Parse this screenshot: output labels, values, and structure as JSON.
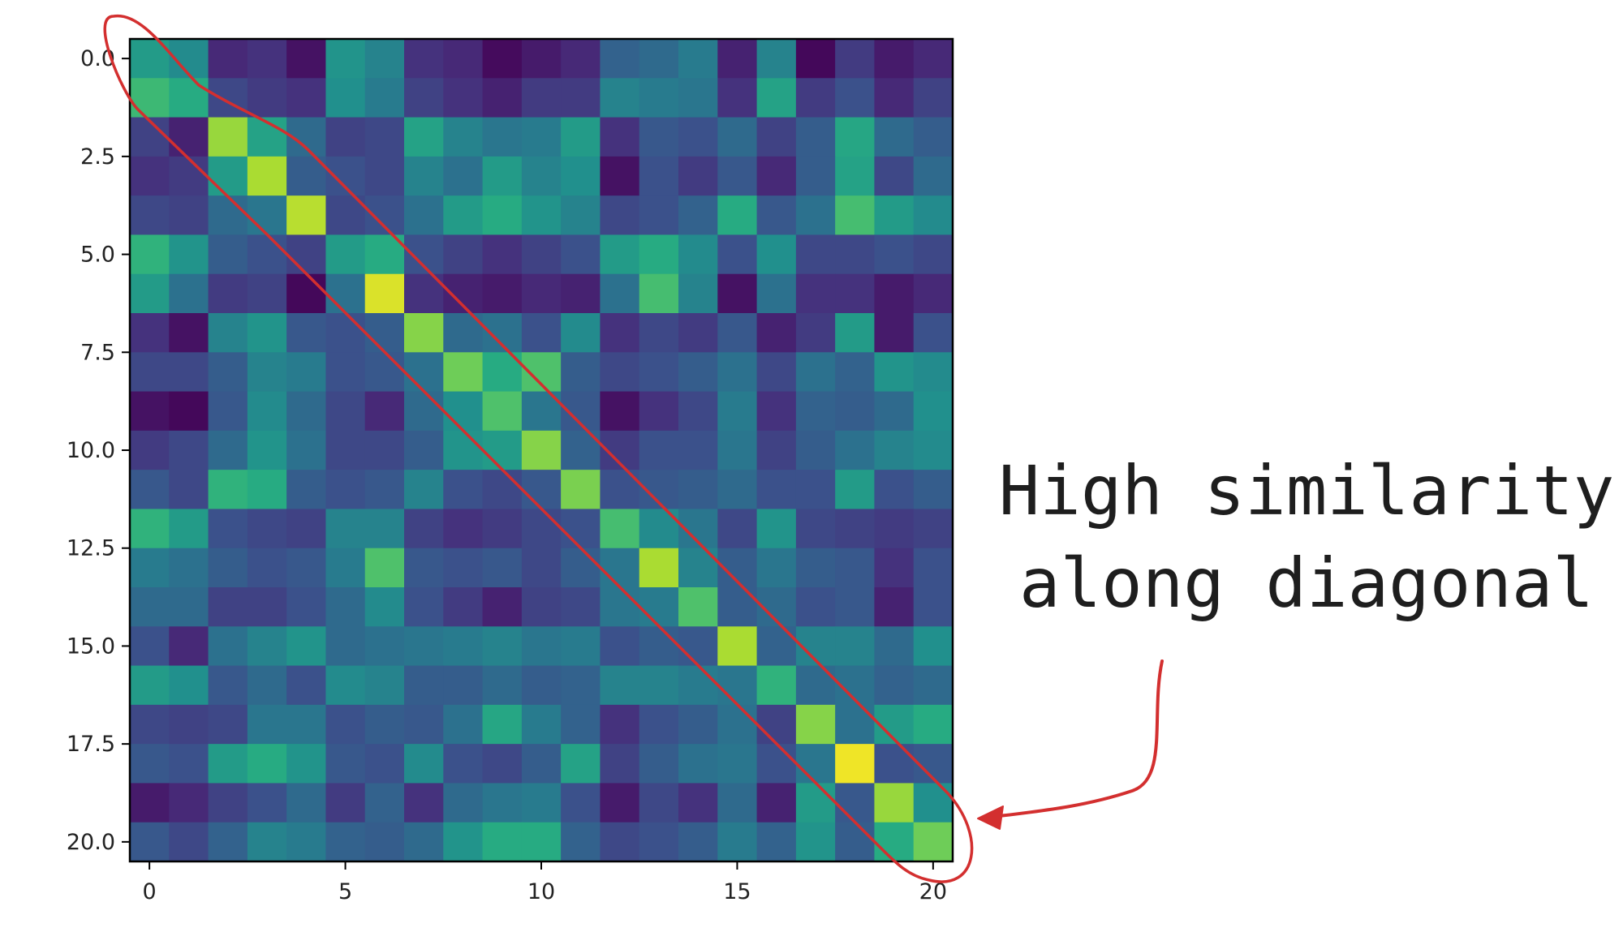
{
  "chart_data": {
    "type": "heatmap",
    "title": "",
    "xlabel": "",
    "ylabel": "",
    "colormap": "viridis",
    "vrange": [
      0,
      1
    ],
    "x_ticks": [
      0,
      5,
      10,
      15,
      20
    ],
    "x_tick_labels": [
      "0",
      "5",
      "10",
      "15",
      "20"
    ],
    "y_ticks": [
      0,
      2.5,
      5,
      7.5,
      10,
      12.5,
      15,
      17.5,
      20
    ],
    "y_tick_labels": [
      "0.0",
      "2.5",
      "5.0",
      "7.5",
      "10.0",
      "12.5",
      "15.0",
      "17.5",
      "20.0"
    ],
    "xlim": [
      -0.5,
      20.5
    ],
    "ylim": [
      20.5,
      -0.5
    ],
    "values": [
      [
        0.55,
        0.48,
        0.12,
        0.15,
        0.05,
        0.52,
        0.45,
        0.15,
        0.12,
        0.03,
        0.08,
        0.12,
        0.32,
        0.35,
        0.42,
        0.1,
        0.45,
        0.02,
        0.18,
        0.08,
        0.12
      ],
      [
        0.68,
        0.62,
        0.22,
        0.18,
        0.15,
        0.5,
        0.42,
        0.2,
        0.15,
        0.1,
        0.18,
        0.18,
        0.45,
        0.42,
        0.4,
        0.15,
        0.58,
        0.18,
        0.25,
        0.12,
        0.2
      ],
      [
        0.2,
        0.1,
        0.85,
        0.58,
        0.35,
        0.2,
        0.22,
        0.58,
        0.45,
        0.4,
        0.42,
        0.55,
        0.15,
        0.28,
        0.25,
        0.35,
        0.2,
        0.3,
        0.6,
        0.35,
        0.3
      ],
      [
        0.15,
        0.18,
        0.55,
        0.88,
        0.3,
        0.25,
        0.22,
        0.45,
        0.38,
        0.55,
        0.45,
        0.5,
        0.05,
        0.25,
        0.18,
        0.28,
        0.12,
        0.3,
        0.58,
        0.22,
        0.35
      ],
      [
        0.22,
        0.2,
        0.35,
        0.4,
        0.9,
        0.22,
        0.25,
        0.38,
        0.55,
        0.62,
        0.52,
        0.45,
        0.22,
        0.25,
        0.32,
        0.62,
        0.28,
        0.38,
        0.7,
        0.55,
        0.48
      ],
      [
        0.65,
        0.52,
        0.3,
        0.25,
        0.2,
        0.55,
        0.62,
        0.25,
        0.2,
        0.15,
        0.2,
        0.25,
        0.55,
        0.62,
        0.48,
        0.25,
        0.5,
        0.22,
        0.22,
        0.25,
        0.22
      ],
      [
        0.55,
        0.38,
        0.18,
        0.2,
        0.02,
        0.38,
        0.95,
        0.15,
        0.1,
        0.08,
        0.12,
        0.1,
        0.38,
        0.7,
        0.45,
        0.05,
        0.38,
        0.15,
        0.15,
        0.08,
        0.12
      ],
      [
        0.15,
        0.05,
        0.45,
        0.52,
        0.28,
        0.25,
        0.3,
        0.82,
        0.35,
        0.38,
        0.25,
        0.48,
        0.15,
        0.22,
        0.18,
        0.28,
        0.1,
        0.18,
        0.55,
        0.08,
        0.25
      ],
      [
        0.22,
        0.22,
        0.3,
        0.45,
        0.42,
        0.25,
        0.28,
        0.38,
        0.78,
        0.62,
        0.72,
        0.3,
        0.22,
        0.25,
        0.3,
        0.38,
        0.22,
        0.38,
        0.32,
        0.52,
        0.48
      ],
      [
        0.05,
        0.02,
        0.28,
        0.48,
        0.35,
        0.22,
        0.12,
        0.35,
        0.5,
        0.72,
        0.4,
        0.28,
        0.05,
        0.15,
        0.22,
        0.42,
        0.15,
        0.32,
        0.3,
        0.35,
        0.5
      ],
      [
        0.18,
        0.22,
        0.35,
        0.52,
        0.38,
        0.22,
        0.22,
        0.3,
        0.52,
        0.55,
        0.82,
        0.32,
        0.18,
        0.25,
        0.25,
        0.4,
        0.2,
        0.3,
        0.38,
        0.45,
        0.48
      ],
      [
        0.28,
        0.22,
        0.65,
        0.62,
        0.3,
        0.25,
        0.28,
        0.45,
        0.25,
        0.22,
        0.28,
        0.8,
        0.25,
        0.28,
        0.3,
        0.35,
        0.25,
        0.25,
        0.55,
        0.25,
        0.3
      ],
      [
        0.65,
        0.55,
        0.25,
        0.22,
        0.2,
        0.45,
        0.45,
        0.2,
        0.15,
        0.18,
        0.22,
        0.25,
        0.7,
        0.48,
        0.4,
        0.22,
        0.52,
        0.22,
        0.2,
        0.18,
        0.2
      ],
      [
        0.42,
        0.38,
        0.3,
        0.25,
        0.28,
        0.42,
        0.72,
        0.28,
        0.25,
        0.28,
        0.22,
        0.3,
        0.4,
        0.88,
        0.45,
        0.3,
        0.4,
        0.3,
        0.28,
        0.15,
        0.25
      ],
      [
        0.35,
        0.35,
        0.2,
        0.2,
        0.25,
        0.35,
        0.48,
        0.25,
        0.18,
        0.1,
        0.2,
        0.22,
        0.4,
        0.42,
        0.72,
        0.3,
        0.35,
        0.25,
        0.28,
        0.1,
        0.25
      ],
      [
        0.25,
        0.12,
        0.38,
        0.45,
        0.52,
        0.35,
        0.38,
        0.4,
        0.42,
        0.45,
        0.4,
        0.42,
        0.25,
        0.3,
        0.28,
        0.88,
        0.32,
        0.45,
        0.45,
        0.35,
        0.5
      ],
      [
        0.55,
        0.5,
        0.28,
        0.35,
        0.25,
        0.48,
        0.45,
        0.3,
        0.3,
        0.35,
        0.3,
        0.32,
        0.45,
        0.45,
        0.42,
        0.4,
        0.65,
        0.35,
        0.38,
        0.32,
        0.35
      ],
      [
        0.22,
        0.2,
        0.22,
        0.4,
        0.4,
        0.25,
        0.3,
        0.28,
        0.38,
        0.6,
        0.42,
        0.32,
        0.15,
        0.25,
        0.3,
        0.38,
        0.2,
        0.82,
        0.38,
        0.55,
        0.62
      ],
      [
        0.28,
        0.25,
        0.55,
        0.62,
        0.52,
        0.28,
        0.25,
        0.48,
        0.25,
        0.22,
        0.3,
        0.58,
        0.2,
        0.3,
        0.38,
        0.4,
        0.25,
        0.4,
        0.98,
        0.25,
        0.28
      ],
      [
        0.08,
        0.12,
        0.2,
        0.25,
        0.35,
        0.18,
        0.32,
        0.15,
        0.35,
        0.4,
        0.42,
        0.25,
        0.08,
        0.22,
        0.15,
        0.35,
        0.1,
        0.55,
        0.28,
        0.85,
        0.5
      ],
      [
        0.28,
        0.22,
        0.32,
        0.45,
        0.42,
        0.32,
        0.3,
        0.35,
        0.52,
        0.62,
        0.62,
        0.32,
        0.22,
        0.25,
        0.3,
        0.42,
        0.32,
        0.52,
        0.3,
        0.62,
        0.78
      ]
    ]
  },
  "annotation": {
    "lines": [
      "High similarity",
      "along diagonal"
    ]
  },
  "colors": {
    "highlight": "#d32f2f",
    "axis": "#000000"
  }
}
